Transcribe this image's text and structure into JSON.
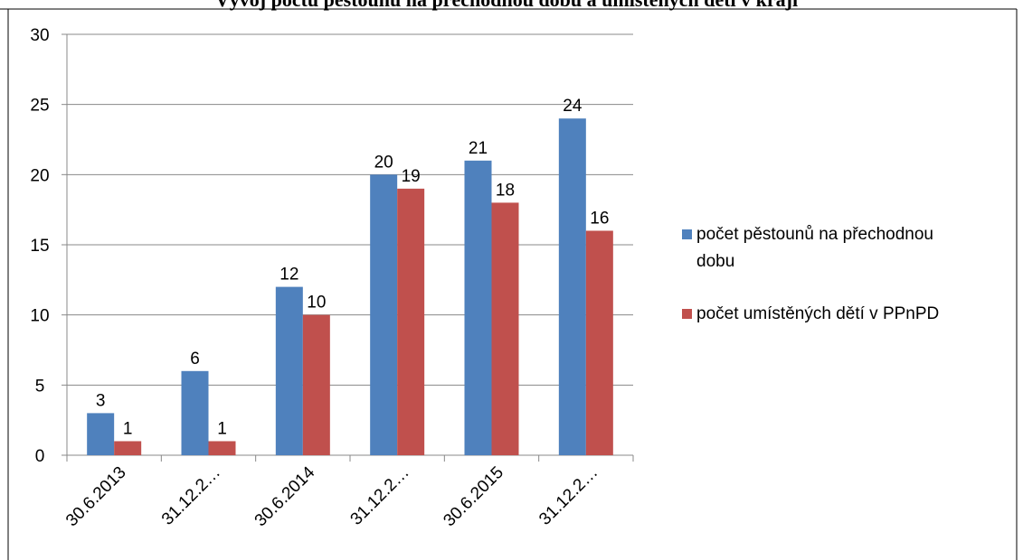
{
  "chart_data": {
    "type": "bar",
    "title": "Vývoj počtu pěstounů na přechodnou dobu a umístěných dětí v kraji",
    "categories": [
      "30.6.2013",
      "31.12.2…",
      "30.6.2014",
      "31.12.2…",
      "30.6.2015",
      "31.12.2…"
    ],
    "series": [
      {
        "name": "počet pěstounů na přechodnou dobu",
        "color": "#4f81bd",
        "values": [
          3,
          6,
          12,
          20,
          21,
          24
        ]
      },
      {
        "name": "počet umístěných dětí v PPnPD",
        "color": "#c0504d",
        "values": [
          1,
          1,
          10,
          19,
          18,
          16
        ]
      }
    ],
    "ylim": [
      0,
      30
    ],
    "yticks": [
      0,
      5,
      10,
      15,
      20,
      25,
      30
    ],
    "grid": true,
    "data_labels": true,
    "legend_position": "right"
  }
}
